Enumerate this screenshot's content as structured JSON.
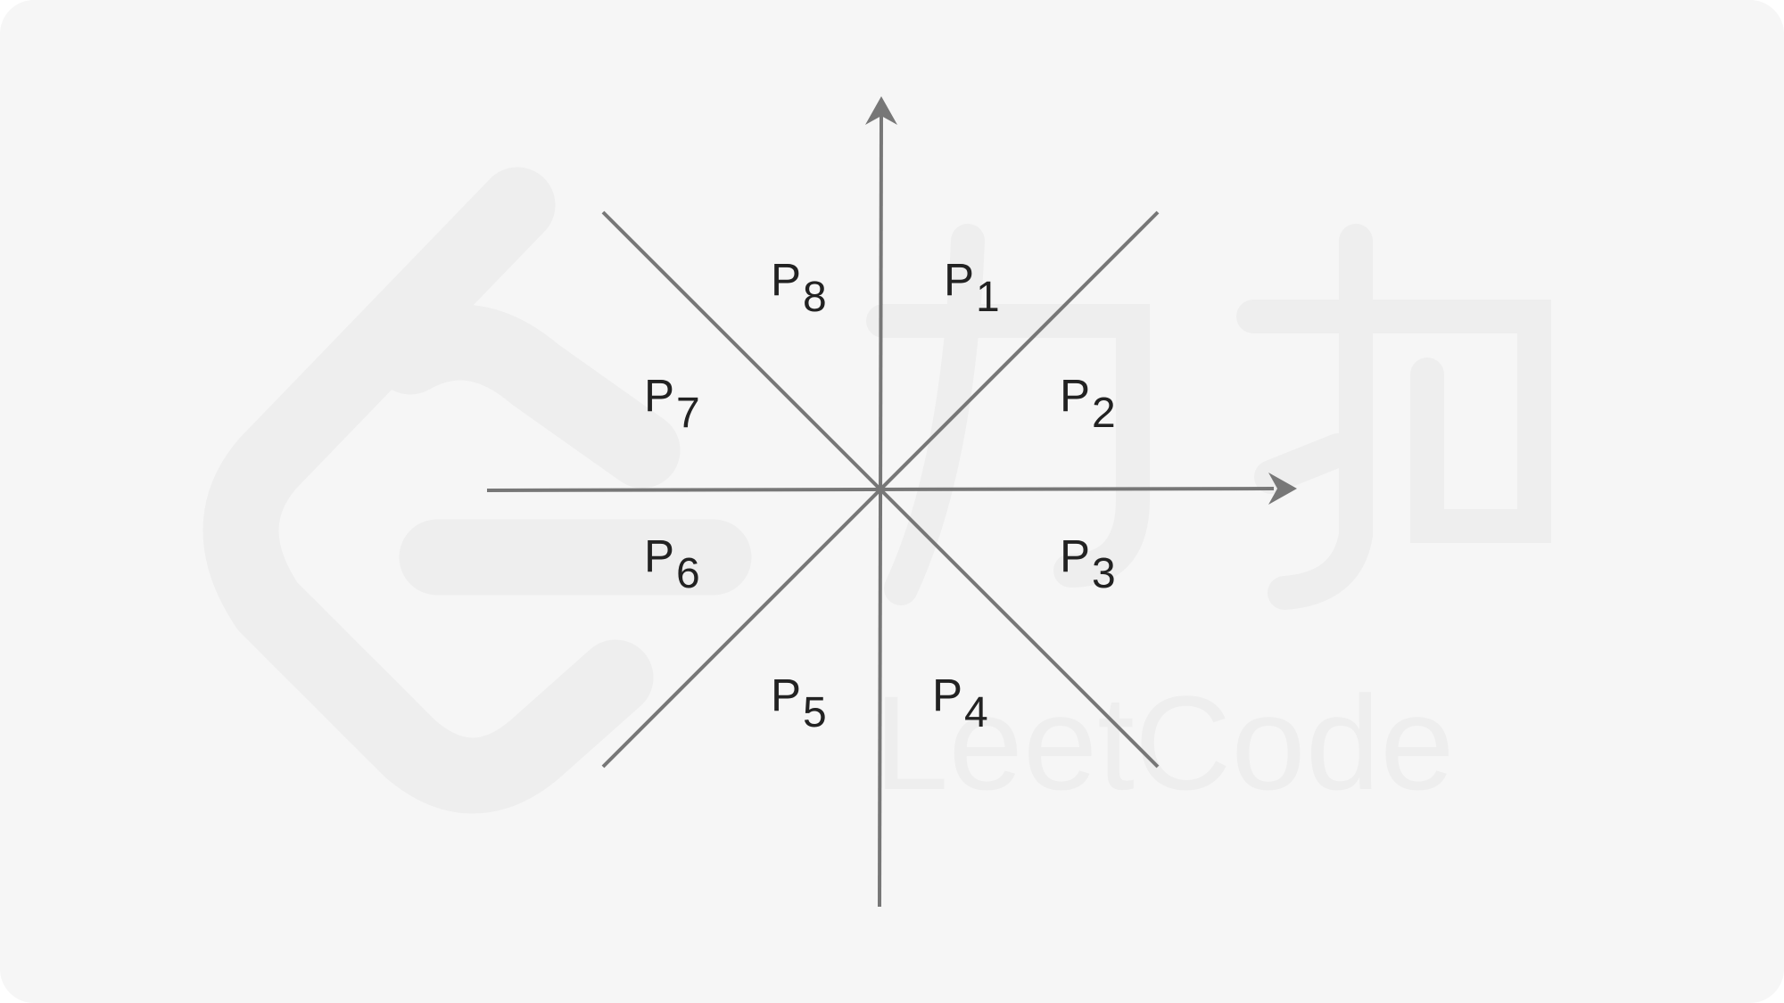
{
  "diagram": {
    "octants": [
      {
        "id": "p1",
        "letter": "P",
        "index": "1"
      },
      {
        "id": "p2",
        "letter": "P",
        "index": "2"
      },
      {
        "id": "p3",
        "letter": "P",
        "index": "3"
      },
      {
        "id": "p4",
        "letter": "P",
        "index": "4"
      },
      {
        "id": "p5",
        "letter": "P",
        "index": "5"
      },
      {
        "id": "p6",
        "letter": "P",
        "index": "6"
      },
      {
        "id": "p7",
        "letter": "P",
        "index": "7"
      },
      {
        "id": "p8",
        "letter": "P",
        "index": "8"
      }
    ]
  },
  "watermark": {
    "brand_text": "LeetCode",
    "chinese_text": "力扣"
  },
  "colors": {
    "background": "#f6f6f6",
    "lines": "#777777",
    "labels": "#222222",
    "watermark": "#eeeeee"
  }
}
